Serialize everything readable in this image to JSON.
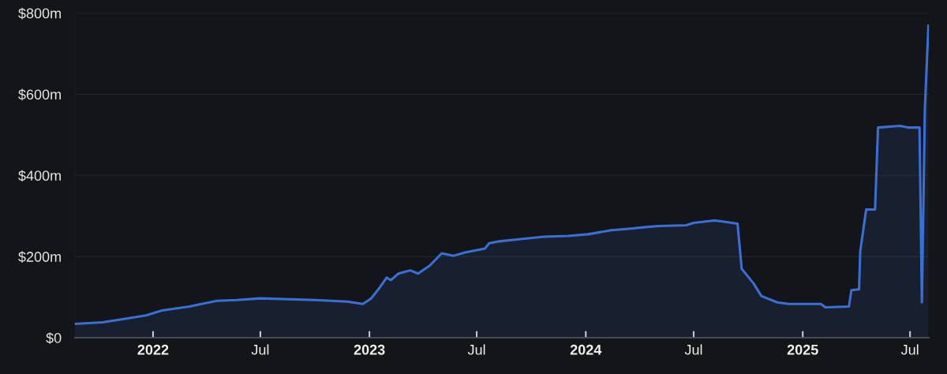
{
  "chart_data": {
    "type": "area",
    "x": [
      "2021-08-22",
      "2021-10-08",
      "2021-11-17",
      "2021-12-20",
      "2022-01-16",
      "2022-03-03",
      "2022-04-19",
      "2022-05-22",
      "2022-07-01",
      "2022-10-02",
      "2022-11-25",
      "2022-12-21",
      "2023-01-04",
      "2023-01-17",
      "2023-01-30",
      "2023-02-06",
      "2023-02-19",
      "2023-03-11",
      "2023-03-24",
      "2023-04-13",
      "2023-05-03",
      "2023-05-23",
      "2023-06-11",
      "2023-07-15",
      "2023-07-22",
      "2023-08-05",
      "2023-09-13",
      "2023-10-23",
      "2023-12-02",
      "2024-01-05",
      "2024-02-13",
      "2024-03-17",
      "2024-04-13",
      "2024-05-03",
      "2024-06-18",
      "2024-07-01",
      "2024-08-04",
      "2024-08-17",
      "2024-09-13",
      "2024-09-20",
      "2024-10-10",
      "2024-10-23",
      "2024-11-19",
      "2024-12-09",
      "2025-02-01",
      "2025-02-08",
      "2025-03-20",
      "2025-03-24",
      "2025-04-06",
      "2025-04-08",
      "2025-04-18",
      "2025-05-03",
      "2025-05-08",
      "2025-06-14",
      "2025-06-27",
      "2025-07-17",
      "2025-07-21",
      "2025-07-26",
      "2025-08-01"
    ],
    "series": [
      {
        "color": "#3b6fd6",
        "values": [
          34,
          38,
          47,
          55,
          67,
          77,
          91,
          93,
          97,
          93,
          89,
          83,
          97,
          121,
          148,
          142,
          158,
          166,
          158,
          178,
          208,
          202,
          210,
          220,
          233,
          237,
          243,
          249,
          251,
          255,
          265,
          269,
          273,
          275,
          277,
          283,
          289,
          287,
          281,
          170,
          134,
          103,
          87,
          83,
          83,
          75,
          77,
          117,
          119,
          213,
          316,
          316,
          518,
          522,
          518,
          518,
          87,
          563,
          769
        ]
      }
    ],
    "xlim": [
      "2021-08-22",
      "2025-08-02"
    ],
    "xticks": [
      {
        "value": "2022-01-01",
        "label": "2022"
      },
      {
        "value": "2022-07-01",
        "label": "Jul"
      },
      {
        "value": "2023-01-01",
        "label": "2023"
      },
      {
        "value": "2023-07-01",
        "label": "Jul"
      },
      {
        "value": "2024-01-01",
        "label": "2024"
      },
      {
        "value": "2024-07-01",
        "label": "Jul"
      },
      {
        "value": "2025-01-01",
        "label": "2025"
      },
      {
        "value": "2025-07-01",
        "label": "Jul"
      }
    ],
    "ylim": [
      0,
      800
    ],
    "yticks": [
      {
        "value": 0,
        "label": "$0"
      },
      {
        "value": 200,
        "label": "$200m"
      },
      {
        "value": 400,
        "label": "$400m"
      },
      {
        "value": 600,
        "label": "$600m"
      },
      {
        "value": 800,
        "label": "$800m"
      }
    ],
    "grid": "y",
    "legend": false
  }
}
